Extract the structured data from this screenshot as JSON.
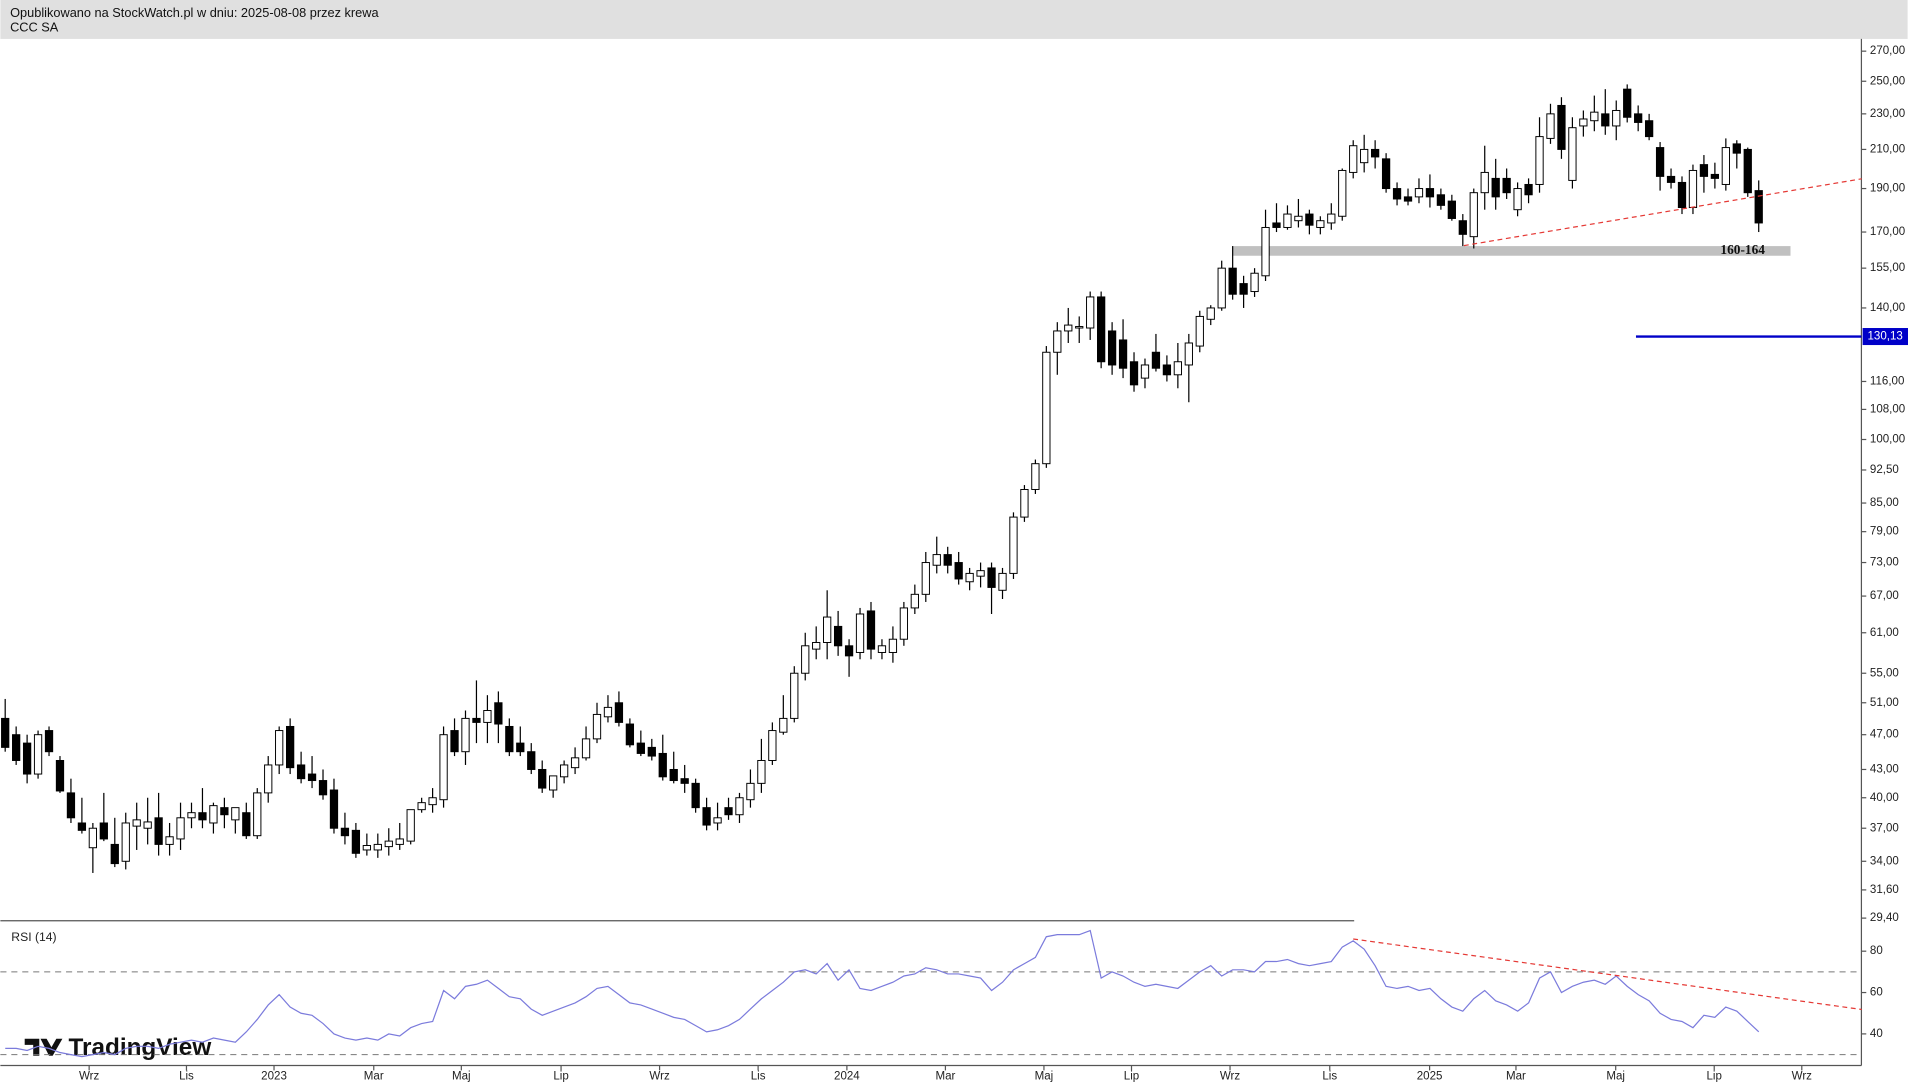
{
  "chart_data": {
    "type": "candlestick",
    "subtitle": "Opublikowano na StockWatch.pl w dniu: 2025-08-08 przez krewa",
    "title": "CCC SA",
    "log_scale": true,
    "ylim": [
      29.2,
      276
    ],
    "yticks": [
      {
        "value": 270,
        "label": "270,00"
      },
      {
        "value": 250,
        "label": "250,00"
      },
      {
        "value": 230,
        "label": "230,00"
      },
      {
        "value": 210,
        "label": "210,00"
      },
      {
        "value": 190,
        "label": "190,00"
      },
      {
        "value": 170,
        "label": "170,00"
      },
      {
        "value": 155,
        "label": "155,00"
      },
      {
        "value": 140,
        "label": "140,00"
      },
      {
        "value": 116,
        "label": "116,00"
      },
      {
        "value": 108,
        "label": "108,00"
      },
      {
        "value": 100,
        "label": "100,00"
      },
      {
        "value": 92.5,
        "label": "92,50"
      },
      {
        "value": 85,
        "label": "85,00"
      },
      {
        "value": 79,
        "label": "79,00"
      },
      {
        "value": 73,
        "label": "73,00"
      },
      {
        "value": 67,
        "label": "67,00"
      },
      {
        "value": 61,
        "label": "61,00"
      },
      {
        "value": 55,
        "label": "55,00"
      },
      {
        "value": 51,
        "label": "51,00"
      },
      {
        "value": 47,
        "label": "47,00"
      },
      {
        "value": 43,
        "label": "43,00"
      },
      {
        "value": 40,
        "label": "40,00"
      },
      {
        "value": 37,
        "label": "37,00"
      },
      {
        "value": 34,
        "label": "34,00"
      },
      {
        "value": 31.6,
        "label": "31,60"
      },
      {
        "value": 29.4,
        "label": "29,40"
      }
    ],
    "xlim": [
      -0.44,
      169.37
    ],
    "xticks": [
      {
        "value": 7.66,
        "label": "Wrz"
      },
      {
        "value": 16.54,
        "label": "Lis"
      },
      {
        "value": 24.53,
        "label": "2023"
      },
      {
        "value": 33.63,
        "label": "Mar"
      },
      {
        "value": 41.62,
        "label": "Maj"
      },
      {
        "value": 50.72,
        "label": "Lip"
      },
      {
        "value": 59.71,
        "label": "Wrz"
      },
      {
        "value": 68.7,
        "label": "Lis"
      },
      {
        "value": 76.8,
        "label": "2024"
      },
      {
        "value": 85.79,
        "label": "Mar"
      },
      {
        "value": 94.78,
        "label": "Maj"
      },
      {
        "value": 102.77,
        "label": "Lip"
      },
      {
        "value": 111.76,
        "label": "Wrz"
      },
      {
        "value": 120.86,
        "label": "Lis"
      },
      {
        "value": 129.97,
        "label": "2025"
      },
      {
        "value": 137.85,
        "label": "Mar"
      },
      {
        "value": 146.95,
        "label": "Maj"
      },
      {
        "value": 155.94,
        "label": "Lip"
      },
      {
        "value": 163.93,
        "label": "Wrz"
      }
    ],
    "up_color": "#ffffff",
    "down_color": "#000000",
    "ohlc": [
      [
        49,
        51.5,
        45,
        45.5
      ],
      [
        47,
        48,
        43.5,
        44
      ],
      [
        46,
        47,
        41.5,
        42.5
      ],
      [
        42.5,
        47.5,
        42,
        47
      ],
      [
        47.5,
        48,
        44.5,
        45
      ],
      [
        44,
        44.5,
        40.5,
        40.7
      ],
      [
        40.5,
        42,
        37.5,
        38
      ],
      [
        37.5,
        40,
        36.5,
        36.8
      ],
      [
        35.2,
        37.5,
        33,
        37
      ],
      [
        37.5,
        40.5,
        35.8,
        36
      ],
      [
        35.5,
        38,
        33.5,
        33.8
      ],
      [
        34,
        38.5,
        33.3,
        37.5
      ],
      [
        37.2,
        39.5,
        35,
        37.8
      ],
      [
        37,
        40,
        35.5,
        37.6
      ],
      [
        38,
        40.5,
        34.5,
        35.5
      ],
      [
        35.5,
        37.5,
        34.5,
        36.2
      ],
      [
        36,
        39.5,
        35,
        38
      ],
      [
        38,
        39.5,
        37,
        38.5
      ],
      [
        38.5,
        41,
        37,
        37.8
      ],
      [
        37.5,
        39.5,
        36.5,
        39.2
      ],
      [
        39,
        40,
        37,
        38.3
      ],
      [
        37.8,
        39,
        36.5,
        39
      ],
      [
        38.5,
        39.5,
        36,
        36.3
      ],
      [
        36.3,
        41,
        36,
        40.5
      ],
      [
        40.5,
        44.5,
        39.5,
        43.5
      ],
      [
        43.5,
        48,
        42.5,
        47.5
      ],
      [
        48,
        49,
        42.5,
        43.2
      ],
      [
        43.5,
        45,
        41.5,
        42
      ],
      [
        42.5,
        44.5,
        41,
        41.8
      ],
      [
        41.8,
        43,
        39.8,
        40.3
      ],
      [
        40.8,
        42,
        36.5,
        37
      ],
      [
        37,
        38.5,
        35.5,
        36.3
      ],
      [
        36.8,
        37.5,
        34.3,
        34.7
      ],
      [
        35,
        36.5,
        34.5,
        35.4
      ],
      [
        35,
        36.5,
        34.3,
        35.5
      ],
      [
        35.3,
        37,
        34.5,
        35.8
      ],
      [
        35.5,
        37.5,
        35,
        36
      ],
      [
        35.8,
        38.5,
        35.5,
        38.8
      ],
      [
        38.8,
        40,
        38.5,
        39.5
      ],
      [
        39.3,
        41,
        38.5,
        40
      ],
      [
        39.8,
        48,
        39,
        47
      ],
      [
        47.5,
        49,
        44.5,
        45
      ],
      [
        45,
        50,
        43.5,
        49
      ],
      [
        49,
        54,
        46,
        48.5
      ],
      [
        48.5,
        52,
        46,
        50
      ],
      [
        51,
        52.5,
        46,
        48.3
      ],
      [
        48,
        49,
        44.5,
        45
      ],
      [
        46,
        48,
        44.5,
        45
      ],
      [
        45,
        46,
        42.5,
        43
      ],
      [
        43,
        44,
        40.5,
        41
      ],
      [
        40.8,
        42,
        40,
        42.3
      ],
      [
        42.2,
        44,
        41.5,
        43.5
      ],
      [
        43.2,
        45.5,
        42.5,
        44.3
      ],
      [
        44.3,
        48,
        44,
        46.5
      ],
      [
        46.5,
        51,
        46,
        49.5
      ],
      [
        49.2,
        52,
        48.5,
        50.4
      ],
      [
        51,
        52.5,
        48,
        48.5
      ],
      [
        48.3,
        49,
        45.5,
        45.8
      ],
      [
        46,
        47.5,
        44.5,
        44.8
      ],
      [
        45.5,
        46.5,
        44,
        44.5
      ],
      [
        44.8,
        47,
        41.8,
        42.2
      ],
      [
        43,
        45,
        41.5,
        41.8
      ],
      [
        42,
        43.5,
        40.5,
        41.5
      ],
      [
        41.5,
        42,
        38.5,
        39
      ],
      [
        39,
        40,
        36.8,
        37.3
      ],
      [
        37.5,
        39.5,
        36.8,
        38
      ],
      [
        39,
        40,
        37.8,
        38.3
      ],
      [
        38.3,
        40.5,
        37.5,
        40
      ],
      [
        39.8,
        43,
        39,
        41.5
      ],
      [
        41.5,
        46.5,
        40.5,
        44
      ],
      [
        44,
        48.5,
        43.5,
        47.5
      ],
      [
        47.3,
        52,
        47,
        49
      ],
      [
        49,
        56,
        48.5,
        55
      ],
      [
        55,
        61,
        54,
        59
      ],
      [
        58.5,
        62,
        57,
        59.5
      ],
      [
        59.5,
        68,
        57,
        63.5
      ],
      [
        62,
        64.5,
        57.5,
        59
      ],
      [
        59,
        60,
        54.5,
        57.5
      ],
      [
        58,
        65,
        57,
        64
      ],
      [
        64.5,
        66,
        57,
        58.5
      ],
      [
        58,
        60,
        57,
        59
      ],
      [
        58,
        62,
        56.5,
        60
      ],
      [
        60,
        66,
        59,
        65
      ],
      [
        65,
        69,
        64,
        67.3
      ],
      [
        67.3,
        75,
        66,
        73
      ],
      [
        72.5,
        78,
        71,
        74.5
      ],
      [
        74.5,
        76,
        71,
        72.5
      ],
      [
        73,
        75,
        69,
        70
      ],
      [
        69.5,
        72,
        68,
        71
      ],
      [
        70.5,
        73,
        68.5,
        71.5
      ],
      [
        72,
        73,
        64,
        68.5
      ],
      [
        68,
        72,
        66.5,
        71
      ],
      [
        71,
        83,
        70,
        82
      ],
      [
        82,
        89,
        81,
        88
      ],
      [
        88,
        95,
        87,
        94
      ],
      [
        94,
        127,
        93,
        125
      ],
      [
        125,
        135,
        118,
        132
      ],
      [
        132,
        140,
        128,
        134
      ],
      [
        133,
        137,
        128,
        133.5
      ],
      [
        133,
        146,
        129,
        144
      ],
      [
        144,
        146,
        120,
        122
      ],
      [
        132,
        135,
        118,
        121
      ],
      [
        129,
        136,
        117,
        120
      ],
      [
        122,
        125,
        113,
        115
      ],
      [
        117,
        123,
        114,
        121
      ],
      [
        125,
        131,
        119,
        120
      ],
      [
        121,
        124,
        116,
        118
      ],
      [
        118,
        128,
        114,
        122
      ],
      [
        121,
        131,
        110,
        128
      ],
      [
        127,
        139,
        125,
        137
      ],
      [
        136,
        141,
        134,
        140
      ],
      [
        140,
        158,
        139,
        155
      ],
      [
        155,
        164,
        143,
        145
      ],
      [
        149,
        152,
        140,
        145
      ],
      [
        146,
        155,
        144,
        153
      ],
      [
        152,
        180,
        150,
        172
      ],
      [
        174,
        183,
        170,
        172
      ],
      [
        172,
        182,
        171,
        178
      ],
      [
        175,
        185,
        172,
        177
      ],
      [
        178,
        180,
        169,
        173
      ],
      [
        172,
        177,
        169,
        175
      ],
      [
        174,
        183,
        171,
        178
      ],
      [
        177,
        200,
        175,
        199
      ],
      [
        198,
        215,
        195,
        212
      ],
      [
        203,
        218,
        198,
        210
      ],
      [
        210,
        215,
        200,
        206
      ],
      [
        205,
        208,
        188,
        190
      ],
      [
        190,
        193,
        182,
        185
      ],
      [
        186,
        190,
        182,
        184
      ],
      [
        186,
        195,
        183,
        190
      ],
      [
        190,
        197,
        181,
        186
      ],
      [
        187,
        190,
        180,
        182
      ],
      [
        184,
        187,
        175,
        176
      ],
      [
        175,
        178,
        164,
        169
      ],
      [
        168,
        190,
        163,
        188
      ],
      [
        188,
        212,
        180,
        198
      ],
      [
        195,
        205,
        180,
        186
      ],
      [
        195,
        200,
        185,
        188
      ],
      [
        180,
        193,
        177,
        190
      ],
      [
        192,
        195,
        183,
        187
      ],
      [
        192,
        228,
        188,
        217
      ],
      [
        216,
        236,
        213,
        230
      ],
      [
        235,
        240,
        205,
        210
      ],
      [
        194,
        228,
        190,
        222
      ],
      [
        223,
        232,
        217,
        227
      ],
      [
        226,
        241,
        220,
        231
      ],
      [
        230,
        245,
        218,
        223
      ],
      [
        223,
        238,
        215,
        232
      ],
      [
        245,
        248,
        225,
        228
      ],
      [
        230,
        235,
        220,
        225
      ],
      [
        226,
        230,
        215,
        217
      ],
      [
        211,
        214,
        189,
        196
      ],
      [
        196,
        200,
        190,
        193
      ],
      [
        193,
        196,
        178,
        181
      ],
      [
        181,
        202,
        178,
        199
      ],
      [
        202,
        207,
        188,
        196
      ],
      [
        197,
        203,
        190,
        195
      ],
      [
        192,
        216,
        189,
        211
      ],
      [
        213,
        215,
        200,
        208
      ],
      [
        210,
        211,
        186,
        188
      ],
      [
        189,
        194,
        170,
        174
      ]
    ],
    "zone": {
      "low": 160,
      "high": 164,
      "label": "160-164",
      "x": [
        112,
        162.9
      ],
      "color": "#c0c0c0"
    },
    "trendline": {
      "x": [
        133.1,
        169.4
      ],
      "y": [
        164.2,
        194.8
      ],
      "color": "#e53935"
    },
    "price_line": {
      "value": 130.13,
      "label": "130,13",
      "x_start": 148.8,
      "color": "#0000c8"
    },
    "rsi": {
      "name": "RSI (14)",
      "color": "#7b7bdc",
      "ylim": [
        24.7,
        94.7
      ],
      "yticks": [
        40,
        60,
        80
      ],
      "levels": [
        30,
        70
      ],
      "values": [
        33,
        33,
        32,
        34,
        33,
        31,
        30,
        29,
        30,
        31,
        30,
        33,
        34,
        34,
        33,
        35,
        36,
        37,
        36,
        38,
        37,
        36,
        41,
        47,
        54,
        59,
        53,
        50,
        49,
        45,
        40,
        38,
        37,
        38,
        37,
        40,
        39,
        43,
        45,
        46,
        61,
        57,
        63,
        64,
        66,
        62,
        58,
        57,
        52,
        49,
        51,
        53,
        55,
        58,
        62,
        63,
        59,
        55,
        54,
        52,
        50,
        48,
        47,
        44,
        41,
        42,
        44,
        47,
        52,
        57,
        61,
        65,
        70,
        71,
        69,
        74,
        66,
        71,
        62,
        61,
        63,
        65,
        68,
        69,
        72,
        71,
        69,
        69,
        68,
        67,
        61,
        65,
        71,
        74,
        77,
        87,
        88,
        88,
        88,
        90,
        67,
        70,
        68,
        65,
        63,
        64,
        63,
        62,
        66,
        70,
        73,
        68,
        71,
        71,
        70,
        75,
        75,
        76,
        74,
        73,
        74,
        75,
        82,
        85,
        81,
        73,
        63,
        62,
        63,
        61,
        62,
        57,
        53,
        51,
        57,
        61,
        56,
        54,
        51,
        55,
        67,
        70,
        60,
        63,
        65,
        66,
        64,
        68,
        63,
        59,
        56,
        50,
        47,
        46,
        43,
        49,
        48,
        53,
        51,
        46,
        41
      ],
      "trendline": {
        "x": [
          123,
          169.4
        ],
        "y": [
          85.9,
          51.8
        ],
        "color": "#e53935"
      }
    },
    "watermark": "TradingView"
  }
}
